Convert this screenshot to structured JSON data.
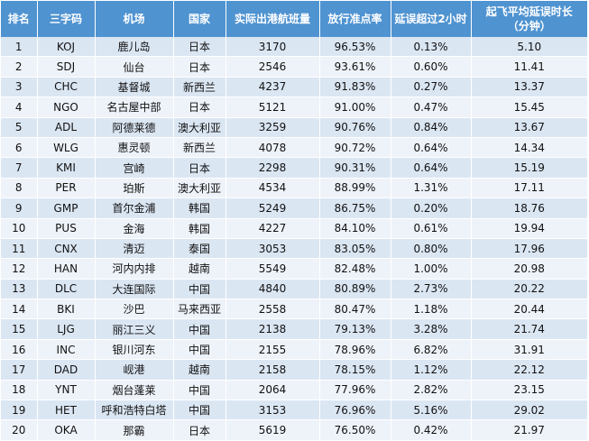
{
  "table": {
    "headers": {
      "rank": "排名",
      "code": "三字码",
      "airport": "机场",
      "country": "国家",
      "flights": "实际出港航班量",
      "ontime": "放行准点率",
      "delay2h": "延误超过2小时",
      "avg_line1": "起飞平均延误时长",
      "avg_line2": "（分钟）"
    },
    "rows": [
      {
        "rank": "1",
        "code": "KOJ",
        "airport": "鹿儿岛",
        "country": "日本",
        "flights": "3170",
        "ontime": "96.53%",
        "delay2h": "0.13%",
        "avg": "5.10"
      },
      {
        "rank": "2",
        "code": "SDJ",
        "airport": "仙台",
        "country": "日本",
        "flights": "2546",
        "ontime": "93.61%",
        "delay2h": "0.60%",
        "avg": "11.41"
      },
      {
        "rank": "3",
        "code": "CHC",
        "airport": "基督城",
        "country": "新西兰",
        "flights": "4237",
        "ontime": "91.83%",
        "delay2h": "0.27%",
        "avg": "13.37"
      },
      {
        "rank": "4",
        "code": "NGO",
        "airport": "名古屋中部",
        "country": "日本",
        "flights": "5121",
        "ontime": "91.00%",
        "delay2h": "0.47%",
        "avg": "15.45"
      },
      {
        "rank": "5",
        "code": "ADL",
        "airport": "阿德莱德",
        "country": "澳大利亚",
        "flights": "3259",
        "ontime": "90.76%",
        "delay2h": "0.84%",
        "avg": "13.67"
      },
      {
        "rank": "6",
        "code": "WLG",
        "airport": "惠灵顿",
        "country": "新西兰",
        "flights": "4078",
        "ontime": "90.72%",
        "delay2h": "0.64%",
        "avg": "14.34"
      },
      {
        "rank": "7",
        "code": "KMI",
        "airport": "宫崎",
        "country": "日本",
        "flights": "2298",
        "ontime": "90.31%",
        "delay2h": "0.64%",
        "avg": "15.19"
      },
      {
        "rank": "8",
        "code": "PER",
        "airport": "珀斯",
        "country": "澳大利亚",
        "flights": "4534",
        "ontime": "88.99%",
        "delay2h": "1.31%",
        "avg": "17.11"
      },
      {
        "rank": "9",
        "code": "GMP",
        "airport": "首尔金浦",
        "country": "韩国",
        "flights": "5249",
        "ontime": "86.75%",
        "delay2h": "0.20%",
        "avg": "18.76"
      },
      {
        "rank": "10",
        "code": "PUS",
        "airport": "金海",
        "country": "韩国",
        "flights": "4227",
        "ontime": "84.10%",
        "delay2h": "0.61%",
        "avg": "19.94"
      },
      {
        "rank": "11",
        "code": "CNX",
        "airport": "清迈",
        "country": "泰国",
        "flights": "3053",
        "ontime": "83.05%",
        "delay2h": "0.80%",
        "avg": "17.96"
      },
      {
        "rank": "12",
        "code": "HAN",
        "airport": "河内内排",
        "country": "越南",
        "flights": "5549",
        "ontime": "82.48%",
        "delay2h": "1.00%",
        "avg": "20.98"
      },
      {
        "rank": "13",
        "code": "DLC",
        "airport": "大连国际",
        "country": "中国",
        "flights": "4840",
        "ontime": "80.89%",
        "delay2h": "2.73%",
        "avg": "20.22"
      },
      {
        "rank": "14",
        "code": "BKI",
        "airport": "沙巴",
        "country": "马来西亚",
        "flights": "2558",
        "ontime": "80.47%",
        "delay2h": "1.18%",
        "avg": "20.44"
      },
      {
        "rank": "15",
        "code": "LJG",
        "airport": "丽江三义",
        "country": "中国",
        "flights": "2138",
        "ontime": "79.13%",
        "delay2h": "3.28%",
        "avg": "21.74"
      },
      {
        "rank": "16",
        "code": "INC",
        "airport": "银川河东",
        "country": "中国",
        "flights": "2155",
        "ontime": "78.96%",
        "delay2h": "6.82%",
        "avg": "31.91"
      },
      {
        "rank": "17",
        "code": "DAD",
        "airport": "岘港",
        "country": "越南",
        "flights": "2158",
        "ontime": "78.15%",
        "delay2h": "1.12%",
        "avg": "22.12"
      },
      {
        "rank": "18",
        "code": "YNT",
        "airport": "烟台蓬莱",
        "country": "中国",
        "flights": "2064",
        "ontime": "77.96%",
        "delay2h": "2.82%",
        "avg": "23.15"
      },
      {
        "rank": "19",
        "code": "HET",
        "airport": "呼和浩特白塔",
        "country": "中国",
        "flights": "3153",
        "ontime": "76.96%",
        "delay2h": "5.16%",
        "avg": "29.02"
      },
      {
        "rank": "20",
        "code": "OKA",
        "airport": "那霸",
        "country": "日本",
        "flights": "5619",
        "ontime": "76.50%",
        "delay2h": "0.42%",
        "avg": "21.97"
      }
    ]
  },
  "colors": {
    "header_bg": "#4f93d1",
    "row_odd": "#dbe6f3",
    "row_even": "#eef3fa"
  }
}
